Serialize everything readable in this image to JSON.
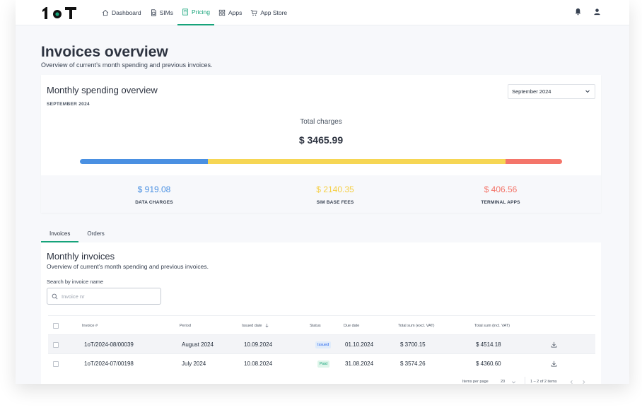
{
  "nav": {
    "logo_text": "1oT",
    "items": [
      {
        "label": "Dashboard",
        "icon": "home-icon",
        "active": false
      },
      {
        "label": "SIMs",
        "icon": "sim-icon",
        "active": false
      },
      {
        "label": "Pricing",
        "icon": "calculator-icon",
        "active": true
      },
      {
        "label": "Apps",
        "icon": "grid-icon",
        "active": false
      },
      {
        "label": "App Store",
        "icon": "cart-icon",
        "active": false
      }
    ],
    "accent": "#16a37a"
  },
  "page": {
    "title": "Invoices overview",
    "subtitle": "Overview of current’s month spending and previous invoices."
  },
  "spending": {
    "title": "Monthly spending overview",
    "month_label": "SEPTEMBER 2024",
    "month_select": "September 2024",
    "total_label": "Total charges",
    "total_value": "$ 3465.99",
    "breakdown": [
      {
        "label": "DATA CHARGES",
        "value": "$ 919.08",
        "amount": 919.08,
        "color": "#4a90e2"
      },
      {
        "label": "SIM BASE FEES",
        "value": "$ 2140.35",
        "amount": 2140.35,
        "color": "#f6d654"
      },
      {
        "label": "TERMINAL APPS",
        "value": "$ 406.56",
        "amount": 406.56,
        "color": "#f4756a"
      }
    ]
  },
  "tabs": [
    {
      "label": "Invoices",
      "active": true
    },
    {
      "label": "Orders",
      "active": false
    }
  ],
  "invoices": {
    "title": "Monthly invoices",
    "subtitle": "Overview of current’s month spending and previous invoices.",
    "search_label": "Search by invoice name",
    "search_placeholder": "Invoice nr",
    "columns": [
      "Invoice #",
      "Period",
      "Issued date",
      "Status",
      "Due date",
      "Total sum (excl. VAT)",
      "Total sum (incl. VAT)"
    ],
    "rows": [
      {
        "invoice": "1oT/2024-08/00039",
        "period": "August 2024",
        "issued": "10.09.2024",
        "status": "Issued",
        "status_color": "#2563eb",
        "status_bg": "#e0ecfb",
        "due": "01.10.2024",
        "excl": "$ 3700.15",
        "incl": "$ 4514.18"
      },
      {
        "invoice": "1oT/2024-07/00198",
        "period": "July 2024",
        "issued": "10.08.2024",
        "status": "Paid",
        "status_color": "#16a37a",
        "status_bg": "#def5ea",
        "due": "31.08.2024",
        "excl": "$ 3574.26",
        "incl": "$ 4360.60"
      }
    ],
    "footer": {
      "items_per_page_label": "Items per page",
      "items_per_page": "20",
      "range": "1 – 2 of 2 items"
    }
  }
}
